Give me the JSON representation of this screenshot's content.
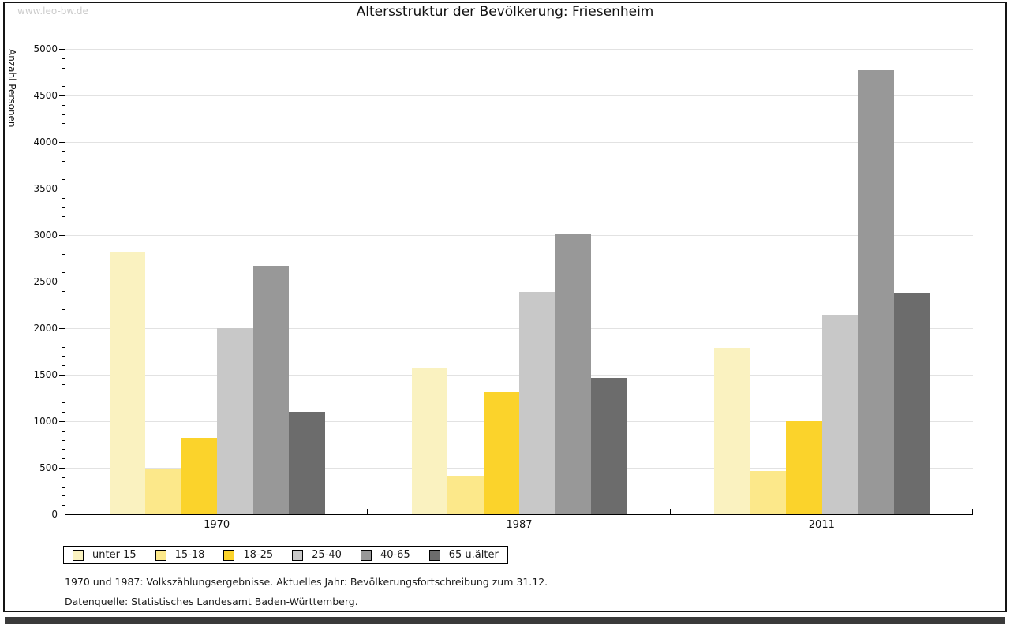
{
  "watermark": "www.leo-bw.de",
  "chart_data": {
    "type": "bar",
    "title": "Altersstruktur der Bevölkerung: Friesenheim",
    "ylabel": "Anzahl Personen",
    "ylim": [
      0,
      5000
    ],
    "y_major_step": 500,
    "y_minor_step": 100,
    "grid": true,
    "legend_position": "bottom-left",
    "categories": [
      "1970",
      "1987",
      "2011"
    ],
    "series": [
      {
        "name": "unter 15",
        "color": "#faf2c0",
        "values": [
          2810,
          1570,
          1790
        ]
      },
      {
        "name": "15-18",
        "color": "#fce88a",
        "values": [
          490,
          410,
          470
        ]
      },
      {
        "name": "18-25",
        "color": "#fbd32b",
        "values": [
          820,
          1310,
          1000
        ]
      },
      {
        "name": "25-40",
        "color": "#c8c8c8",
        "values": [
          2000,
          2390,
          2140
        ]
      },
      {
        "name": "40-65",
        "color": "#989898",
        "values": [
          2670,
          3020,
          4770
        ]
      },
      {
        "name": "65 u.älter",
        "color": "#6c6c6c",
        "values": [
          1100,
          1470,
          2370
        ]
      }
    ]
  },
  "footnotes": {
    "line1": "1970 und 1987: Volkszählungsergebnisse. Aktuelles Jahr: Bevölkerungsfortschreibung zum 31.12.",
    "line2": "Datenquelle: Statistisches Landesamt Baden-Württemberg."
  },
  "colors": {
    "gridline": "#e2e2e2",
    "axis": "#000000",
    "watermark": "#cbcbcb",
    "frame": "#141414",
    "bottom_bar": "#3a3a3a"
  }
}
